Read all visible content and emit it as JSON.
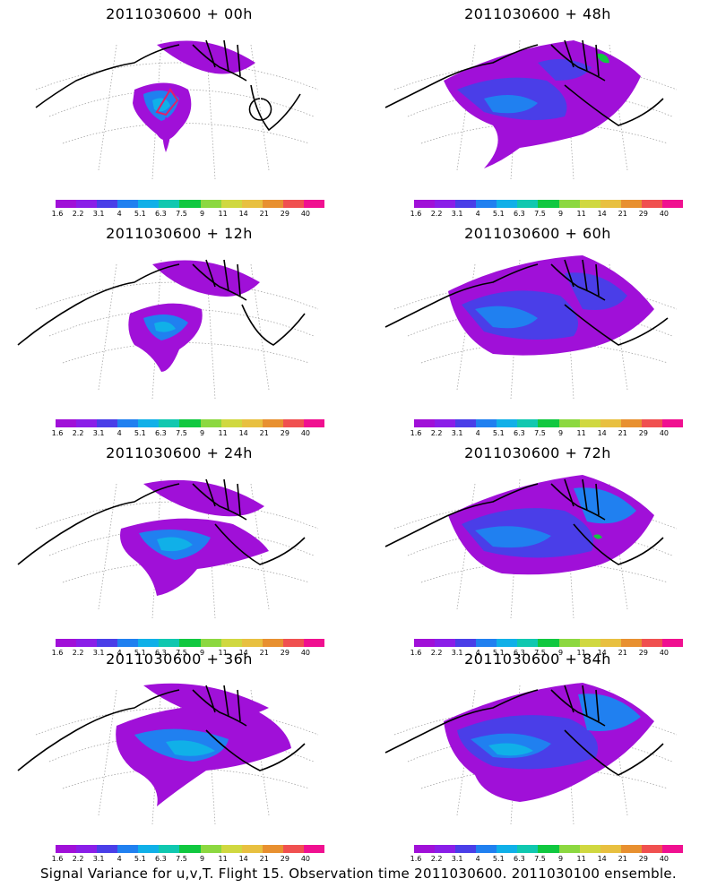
{
  "panels": [
    {
      "title": "2011030600 + 00h",
      "lead": "00h"
    },
    {
      "title": "2011030600 + 48h",
      "lead": "48h"
    },
    {
      "title": "2011030600 + 12h",
      "lead": "12h"
    },
    {
      "title": "2011030600 + 60h",
      "lead": "60h"
    },
    {
      "title": "2011030600 + 24h",
      "lead": "24h"
    },
    {
      "title": "2011030600 + 72h",
      "lead": "72h"
    },
    {
      "title": "2011030600 + 36h",
      "lead": "36h"
    },
    {
      "title": "2011030600 + 84h",
      "lead": "84h"
    }
  ],
  "legend": {
    "labels": [
      "1.6",
      "2.2",
      "3.1",
      "4",
      "5.1",
      "6.3",
      "7.5",
      "9",
      "11",
      "14",
      "21",
      "29",
      "40"
    ],
    "colors": [
      "#a010d8",
      "#8a1ee8",
      "#4a3ee8",
      "#2080f0",
      "#10b0e8",
      "#10c8b0",
      "#10c840",
      "#8cd840",
      "#d0d840",
      "#e8c040",
      "#e89030",
      "#f05050",
      "#f01090"
    ]
  },
  "caption": "Signal Variance for u,v,T. Flight 15. Observation time 2011030600. 2011030100 ensemble.",
  "colors": {
    "background": "#ffffff",
    "coast": "#000000",
    "grid": "#9a9a9a",
    "track": "#e0206a"
  }
}
